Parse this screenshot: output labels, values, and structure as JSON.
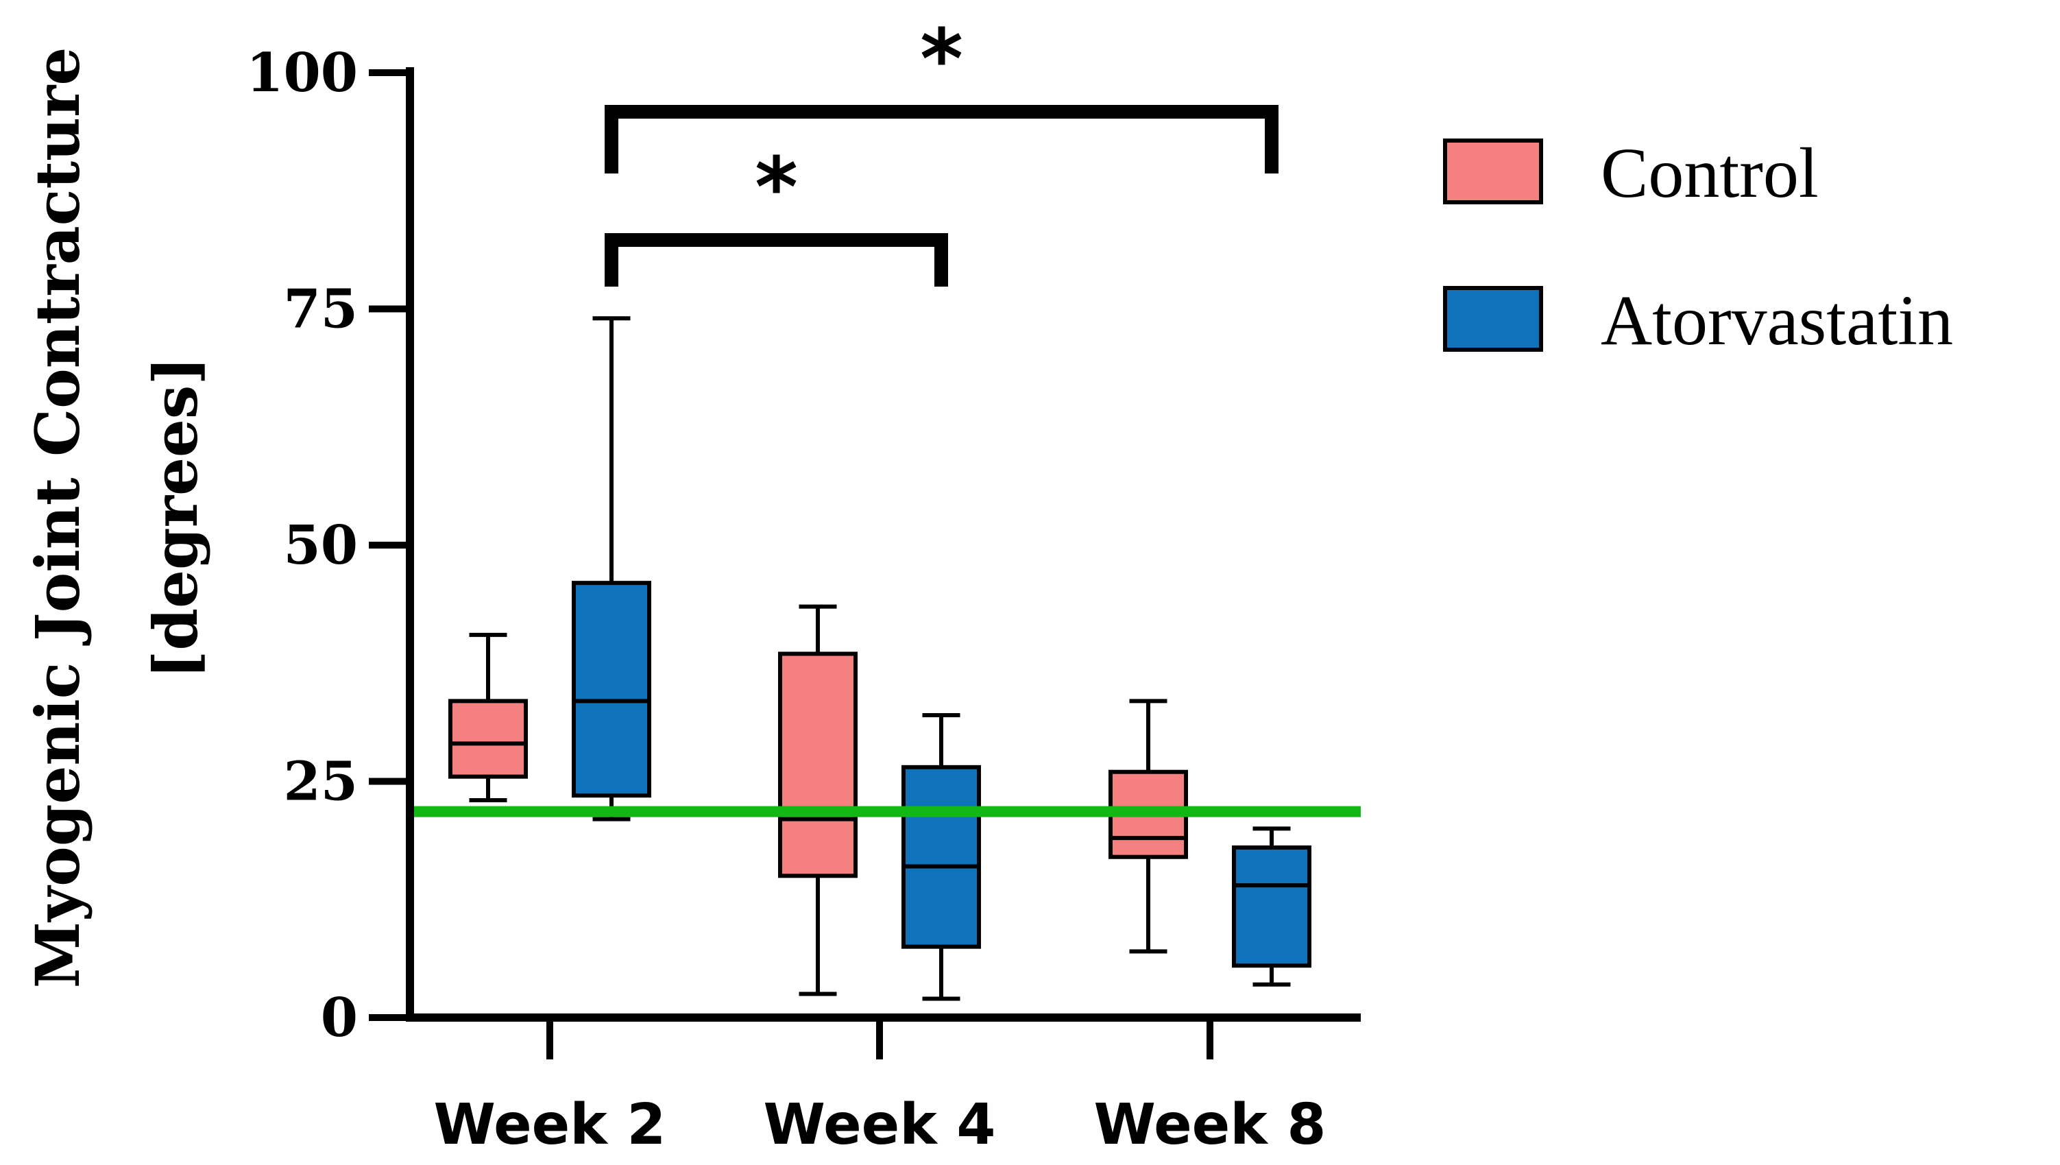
{
  "chart_data": {
    "type": "box",
    "title": "",
    "ylabel_line1": "Myogenic Joint Contracture",
    "ylabel_line2": "[degrees]",
    "xlabel": "",
    "ylim": [
      0,
      100
    ],
    "yticks": [
      0,
      25,
      50,
      75,
      100
    ],
    "ytick_labels": [
      "0",
      "25",
      "50",
      "75",
      "100"
    ],
    "categories": [
      "Week 2",
      "Week 4",
      "Week 8"
    ],
    "series": [
      {
        "name": "Control",
        "color": "#F48080",
        "boxes": [
          {
            "min": 23,
            "q1": 25.5,
            "median": 29,
            "q3": 33.5,
            "max": 40.5
          },
          {
            "min": 2.5,
            "q1": 15,
            "median": 21,
            "q3": 38.5,
            "max": 43.5
          },
          {
            "min": 7,
            "q1": 17,
            "median": 19,
            "q3": 26,
            "max": 33.5
          }
        ]
      },
      {
        "name": "Atorvastatin",
        "color": "#0E73BB",
        "boxes": [
          {
            "min": 21,
            "q1": 23.5,
            "median": 33.5,
            "q3": 46,
            "max": 74
          },
          {
            "min": 2,
            "q1": 7.5,
            "median": 16,
            "q3": 26.5,
            "max": 32
          },
          {
            "min": 3.5,
            "q1": 5.5,
            "median": 14,
            "q3": 18,
            "max": 20
          }
        ]
      }
    ],
    "reference_line": {
      "value": 21.8,
      "color": "#14B814"
    },
    "significance": [
      {
        "from": "Week 2 Atorvastatin",
        "to": "Week 4 Atorvastatin",
        "label": "*"
      },
      {
        "from": "Week 2 Atorvastatin",
        "to": "Week 8 Atorvastatin",
        "label": "*"
      }
    ],
    "legend_position": "top-right"
  }
}
